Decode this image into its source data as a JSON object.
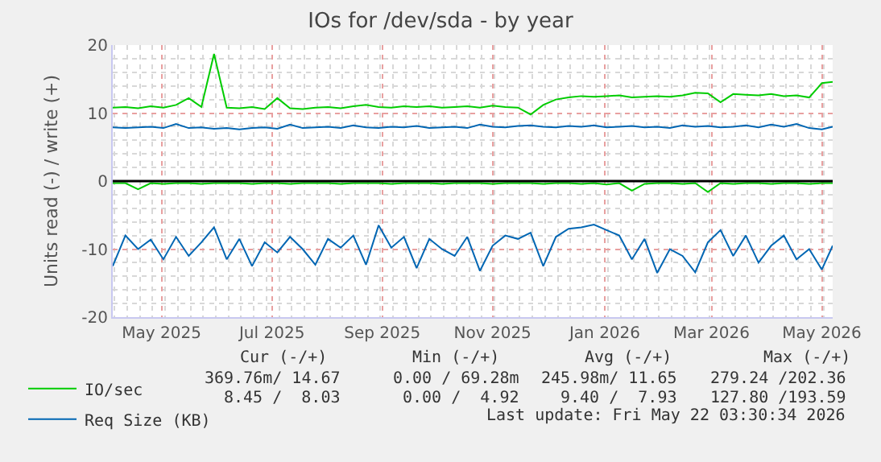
{
  "chart_data": {
    "type": "line",
    "title": "IOs for /dev/sda - by year",
    "ylabel": "Units read (-) / write (+)",
    "x": [
      "2025-04-19",
      "2025-04-26",
      "2025-05-03",
      "2025-05-10",
      "2025-05-17",
      "2025-05-24",
      "2025-05-31",
      "2025-06-07",
      "2025-06-14",
      "2025-06-21",
      "2025-06-28",
      "2025-07-05",
      "2025-07-12",
      "2025-07-19",
      "2025-07-26",
      "2025-08-02",
      "2025-08-09",
      "2025-08-16",
      "2025-08-23",
      "2025-08-30",
      "2025-09-06",
      "2025-09-13",
      "2025-09-20",
      "2025-09-27",
      "2025-10-04",
      "2025-10-11",
      "2025-10-18",
      "2025-10-25",
      "2025-11-01",
      "2025-11-08",
      "2025-11-15",
      "2025-11-22",
      "2025-11-29",
      "2025-12-06",
      "2025-12-13",
      "2025-12-20",
      "2025-12-27",
      "2026-01-03",
      "2026-01-10",
      "2026-01-17",
      "2026-01-24",
      "2026-01-31",
      "2026-02-07",
      "2026-02-14",
      "2026-02-21",
      "2026-02-28",
      "2026-03-07",
      "2026-03-14",
      "2026-03-21",
      "2026-03-28",
      "2026-04-04",
      "2026-04-11",
      "2026-04-18",
      "2026-04-25",
      "2026-05-02",
      "2026-05-09",
      "2026-05-16",
      "2026-05-22"
    ],
    "series": [
      {
        "name": "IO/sec",
        "color": "#00cc00",
        "values": [
          10.8,
          10.9,
          10.7,
          11.0,
          10.8,
          11.2,
          12.2,
          10.9,
          18.7,
          10.8,
          10.7,
          10.9,
          10.6,
          12.2,
          10.7,
          10.6,
          10.8,
          10.9,
          10.7,
          11.0,
          11.2,
          10.9,
          10.8,
          11.0,
          10.9,
          11.0,
          10.8,
          10.9,
          11.0,
          10.8,
          11.1,
          10.9,
          10.8,
          9.8,
          11.2,
          12.0,
          12.3,
          12.5,
          12.4,
          12.5,
          12.6,
          12.3,
          12.4,
          12.5,
          12.4,
          12.6,
          13.0,
          12.9,
          11.6,
          12.8,
          12.7,
          12.6,
          12.8,
          12.5,
          12.6,
          12.3,
          14.4,
          14.6
        ]
      },
      {
        "color": "#00cc00",
        "values": [
          -0.3,
          -0.3,
          -1.2,
          -0.3,
          -0.4,
          -0.3,
          -0.3,
          -0.4,
          -0.3,
          -0.3,
          -0.3,
          -0.4,
          -0.3,
          -0.3,
          -0.4,
          -0.3,
          -0.3,
          -0.3,
          -0.4,
          -0.3,
          -0.3,
          -0.3,
          -0.4,
          -0.3,
          -0.3,
          -0.3,
          -0.4,
          -0.3,
          -0.3,
          -0.3,
          -0.4,
          -0.3,
          -0.3,
          -0.3,
          -0.4,
          -0.3,
          -0.3,
          -0.4,
          -0.3,
          -0.5,
          -0.3,
          -1.4,
          -0.4,
          -0.3,
          -0.3,
          -0.4,
          -0.3,
          -1.6,
          -0.3,
          -0.4,
          -0.3,
          -0.3,
          -0.4,
          -0.3,
          -0.3,
          -0.4,
          -0.3,
          -0.3
        ]
      },
      {
        "name": "Req Size (KB)",
        "color": "#0066b3",
        "values": [
          7.9,
          7.8,
          7.9,
          8.0,
          7.8,
          8.4,
          7.8,
          7.9,
          7.7,
          7.8,
          7.6,
          7.8,
          7.9,
          7.7,
          8.3,
          7.8,
          7.9,
          8.0,
          7.8,
          8.2,
          7.9,
          7.8,
          8.0,
          7.9,
          8.1,
          7.8,
          7.9,
          8.0,
          7.8,
          8.3,
          8.0,
          7.9,
          8.1,
          8.2,
          8.0,
          7.9,
          8.1,
          8.0,
          8.2,
          7.9,
          8.0,
          8.1,
          7.9,
          8.0,
          7.8,
          8.2,
          8.0,
          8.1,
          7.9,
          8.0,
          8.2,
          7.9,
          8.3,
          8.0,
          8.4,
          7.8,
          7.6,
          8.0
        ]
      },
      {
        "color": "#0066b3",
        "values": [
          -12.5,
          -8.0,
          -10.0,
          -8.6,
          -11.5,
          -8.2,
          -11.0,
          -9.0,
          -6.8,
          -11.5,
          -8.5,
          -12.5,
          -9.0,
          -10.5,
          -8.2,
          -10.0,
          -12.3,
          -8.5,
          -9.8,
          -8.0,
          -12.3,
          -6.5,
          -9.8,
          -8.2,
          -12.8,
          -8.5,
          -10.0,
          -11.0,
          -8.2,
          -13.2,
          -9.5,
          -8.0,
          -8.5,
          -7.6,
          -12.5,
          -8.2,
          -7.0,
          -6.8,
          -6.4,
          -7.2,
          -8.0,
          -11.5,
          -8.5,
          -13.5,
          -10.0,
          -11.0,
          -13.4,
          -9.0,
          -7.2,
          -11.0,
          -8.0,
          -12.0,
          -9.5,
          -8.0,
          -11.5,
          -10.0,
          -13.0,
          -9.5
        ]
      }
    ],
    "xlim": [
      "2025-04-19",
      "2026-05-22"
    ],
    "xticks": [
      {
        "value": "2025-05-16",
        "label": "May 2025"
      },
      {
        "value": "2025-07-16",
        "label": "Jul 2025"
      },
      {
        "value": "2025-09-15",
        "label": "Sep 2025"
      },
      {
        "value": "2025-11-15",
        "label": "Nov 2025"
      },
      {
        "value": "2026-01-16",
        "label": "Jan 2026"
      },
      {
        "value": "2026-03-16",
        "label": "Mar 2026"
      },
      {
        "value": "2026-05-16",
        "label": "May 2026"
      }
    ],
    "ylim": [
      -20,
      20
    ],
    "yticks": [
      -20,
      -10,
      0,
      10,
      20
    ],
    "grid": true,
    "legend": "bottom left",
    "ref_lines": [
      {
        "axis": "y",
        "value": 0,
        "color": "#000000"
      }
    ],
    "annotations": [
      "Cur (-/+)",
      "Min (-/+)",
      "Avg (-/+)",
      "Max (-/+)",
      "369.76m/ 14.67",
      "0.00 / 69.28m",
      "245.98m/ 11.65",
      "279.24 /202.36",
      "8.45 /  8.03",
      "0.00 /  4.92",
      "9.40 /  7.93",
      "127.80 /193.59",
      "Last update: Fri May 22 03:30:34 2026"
    ]
  }
}
